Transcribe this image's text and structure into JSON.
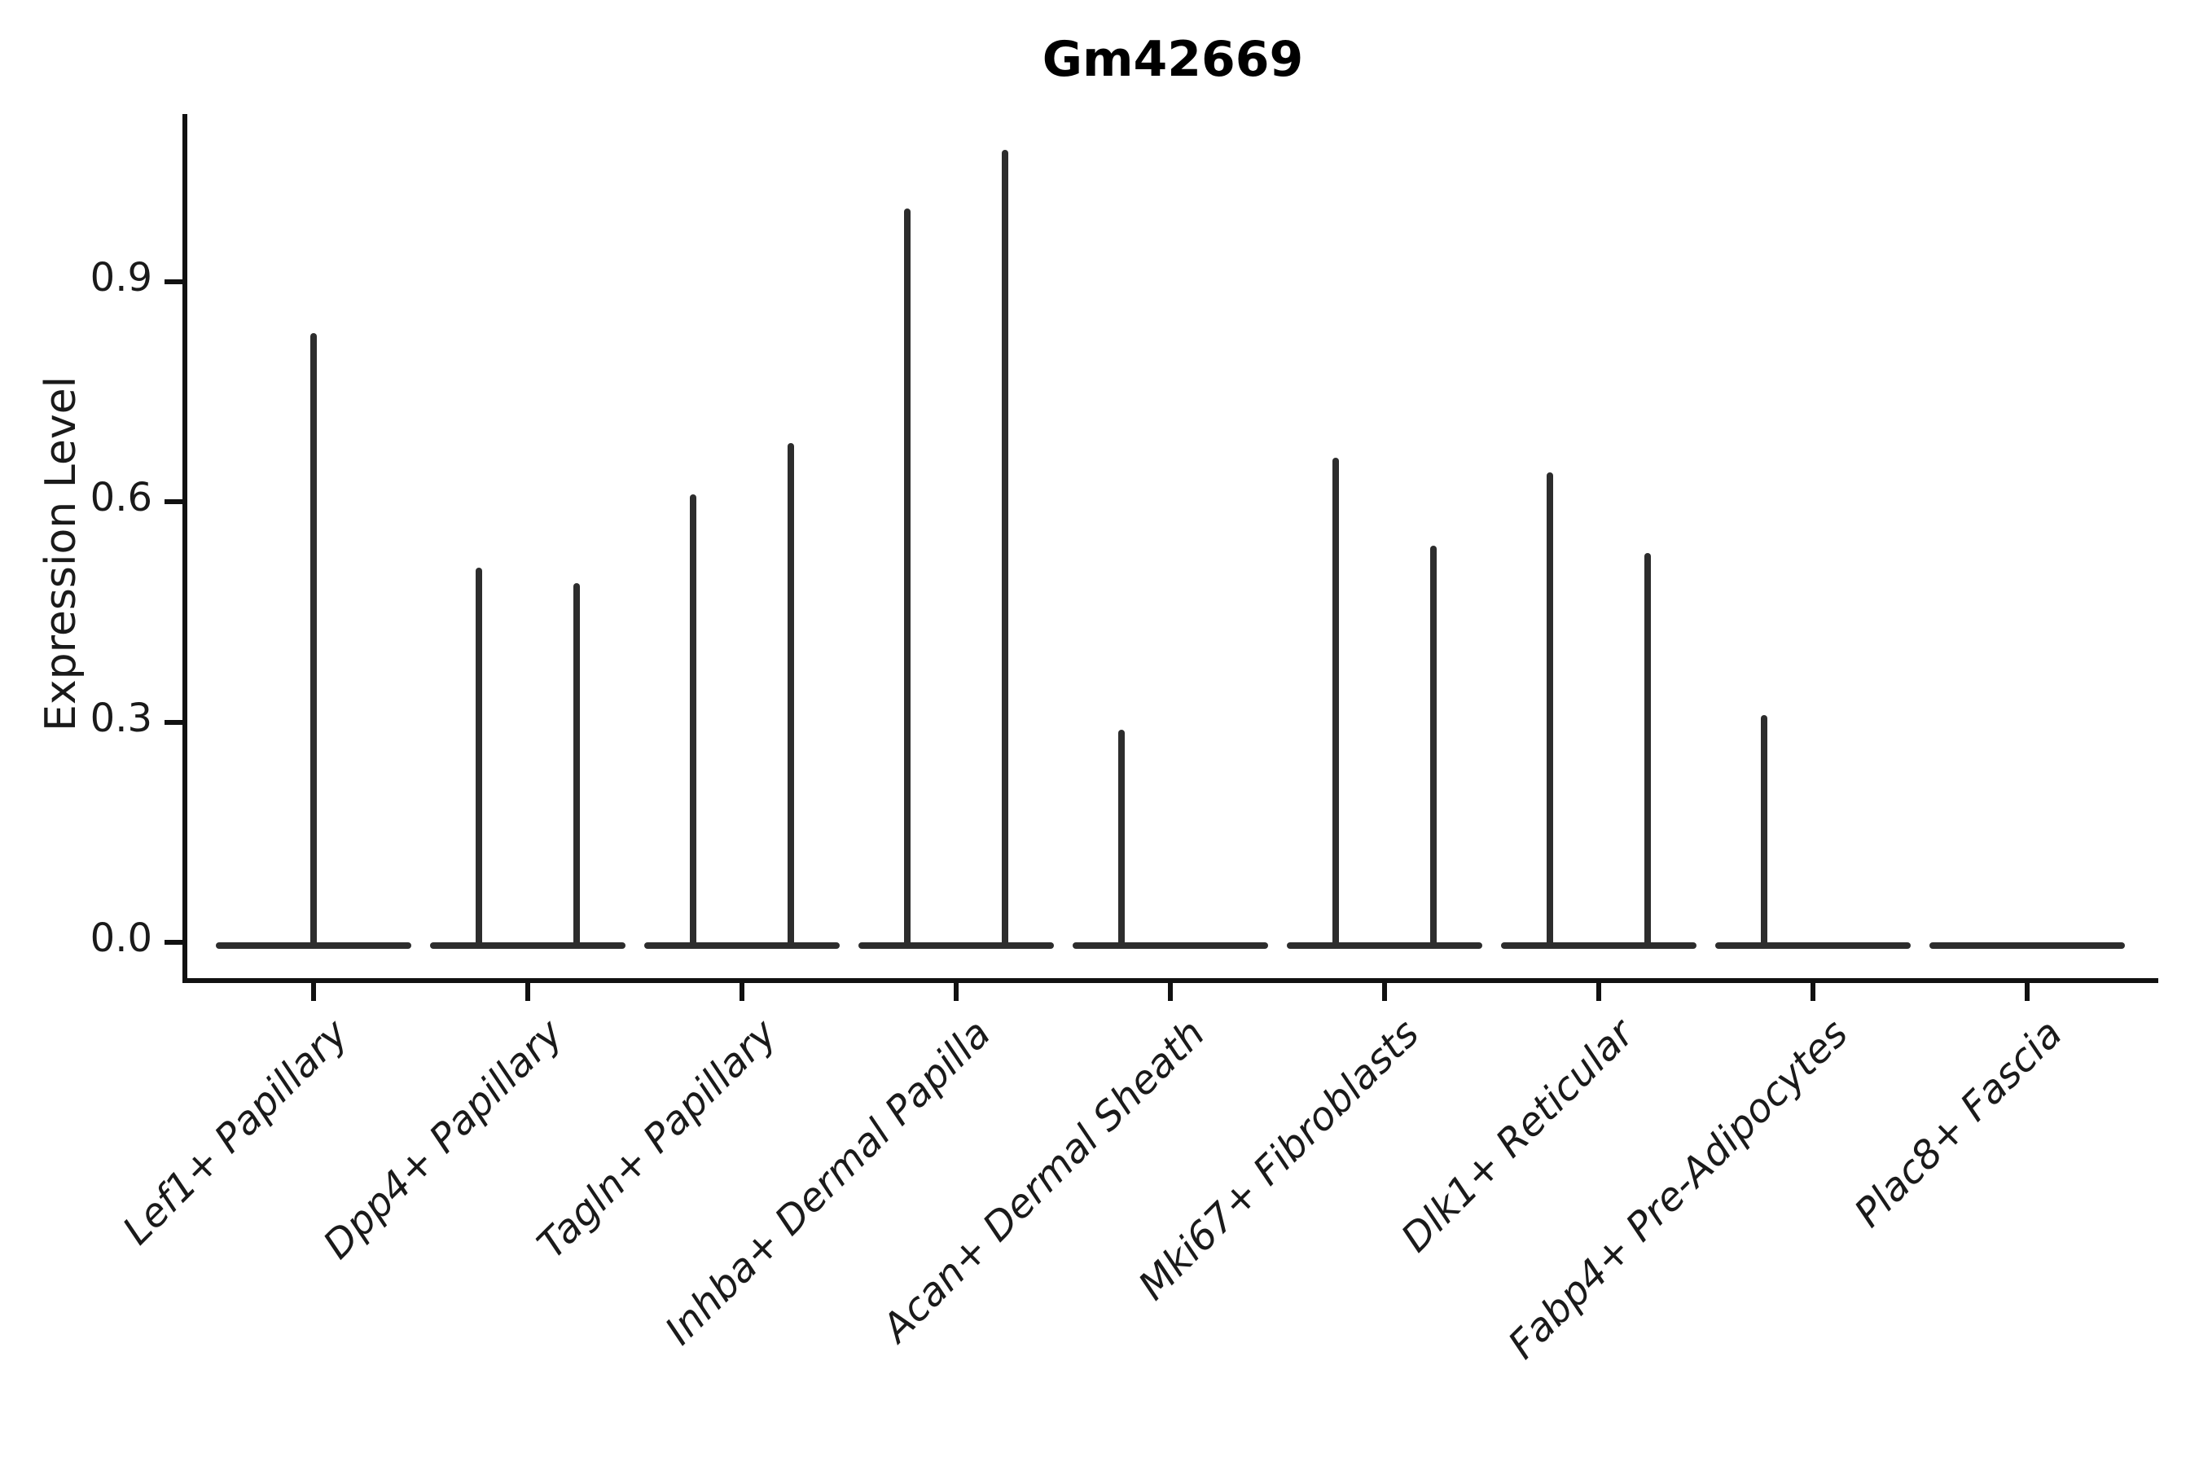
{
  "chart_data": {
    "type": "violin",
    "title": "Gm42669",
    "xlabel": "",
    "ylabel": "Expression Level",
    "yticks": [
      0.0,
      0.3,
      0.6,
      0.9
    ],
    "ytick_labels": [
      "0.0",
      "0.3",
      "0.6",
      "0.9"
    ],
    "ylim": [
      -0.05,
      1.13
    ],
    "categories": [
      "Lef1+ Papillary",
      "Dpp4+ Papillary",
      "Tagln+ Papillary",
      "Inhba+ Dermal Papilla",
      "Acan+ Dermal Sheath",
      "Mki67+ Fibroblasts",
      "Dlk1+ Reticular",
      "Fabp4+ Pre-Adipocytes",
      "Plac8+ Fascia"
    ],
    "violins": [
      {
        "category": "Lef1+ Papillary",
        "spikes": [
          {
            "position": "center",
            "max": 0.83
          }
        ]
      },
      {
        "category": "Dpp4+ Papillary",
        "spikes": [
          {
            "position": "left",
            "max": 0.51
          },
          {
            "position": "right",
            "max": 0.49
          }
        ]
      },
      {
        "category": "Tagln+ Papillary",
        "spikes": [
          {
            "position": "left",
            "max": 0.61
          },
          {
            "position": "right",
            "max": 0.68
          }
        ]
      },
      {
        "category": "Inhba+ Dermal Papilla",
        "spikes": [
          {
            "position": "left",
            "max": 1.0
          },
          {
            "position": "right",
            "max": 1.08
          }
        ]
      },
      {
        "category": "Acan+ Dermal Sheath",
        "spikes": [
          {
            "position": "left",
            "max": 0.29
          }
        ]
      },
      {
        "category": "Mki67+ Fibroblasts",
        "spikes": [
          {
            "position": "left",
            "max": 0.66
          },
          {
            "position": "right",
            "max": 0.54
          }
        ]
      },
      {
        "category": "Dlk1+ Reticular",
        "spikes": [
          {
            "position": "left",
            "max": 0.64
          },
          {
            "position": "right",
            "max": 0.53
          }
        ]
      },
      {
        "category": "Fabp4+ Pre-Adipocytes",
        "spikes": [
          {
            "position": "left",
            "max": 0.31
          }
        ]
      },
      {
        "category": "Plac8+ Fascia",
        "spikes": []
      }
    ],
    "baseline_value": 0.0,
    "layout_hints": {
      "grid": false,
      "legend": "none",
      "x_tick_rotation": 45,
      "spines": [
        "left",
        "bottom"
      ]
    },
    "colors": {
      "violin_line": "#2d2d2d",
      "axis": "#111111",
      "text": "#1a1a1a",
      "background": "#ffffff"
    }
  }
}
